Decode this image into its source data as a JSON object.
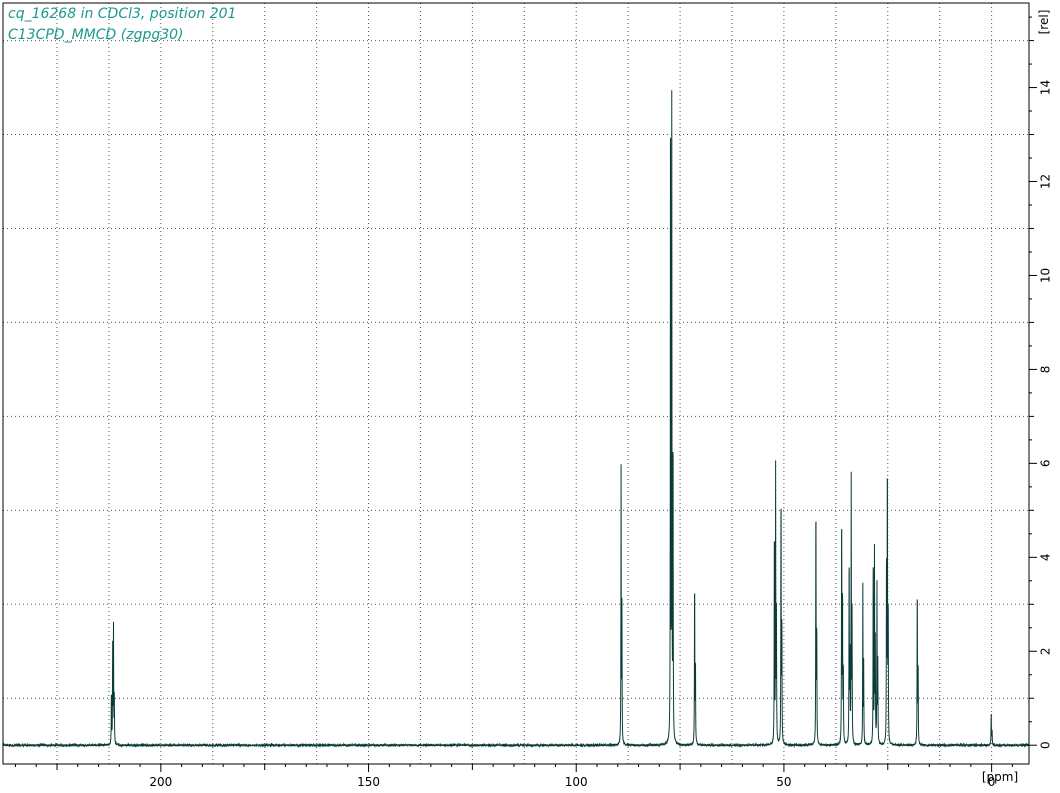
{
  "header": {
    "line1": "cq_16268 in CDCl3, position 201",
    "line2": "C13CPD_MMCD (zgpg30)"
  },
  "chart_data": {
    "type": "line",
    "title": "cq_16268 in CDCl3, position 201",
    "subtitle": "C13CPD_MMCD (zgpg30)",
    "xlabel": "[ppm]",
    "ylabel": "[rel]",
    "xlim": [
      238,
      -9
    ],
    "ylim": [
      -0.4,
      15.8
    ],
    "x_reversed": true,
    "x_ticks": [
      200,
      150,
      100,
      50,
      0
    ],
    "y_ticks": [
      0,
      2,
      4,
      6,
      8,
      10,
      12,
      14
    ],
    "grid": "dotted",
    "colors": {
      "spectrum": "#0b3b38",
      "axis": "#000000",
      "title": "#1a9a8a",
      "grid": "#555555"
    },
    "series": [
      {
        "peaks": [
          {
            "ppm": 211.9,
            "height": 1.2
          },
          {
            "ppm": 211.6,
            "height": 2.05
          },
          {
            "ppm": 211.4,
            "height": 2.45
          },
          {
            "ppm": 211.2,
            "height": 1.0
          },
          {
            "ppm": 89.2,
            "height": 5.85
          },
          {
            "ppm": 89.0,
            "height": 2.85
          },
          {
            "ppm": 77.3,
            "height": 15.05
          },
          {
            "ppm": 77.0,
            "height": 13.45
          },
          {
            "ppm": 76.7,
            "height": 6.95
          },
          {
            "ppm": 71.5,
            "height": 3.75
          },
          {
            "ppm": 71.3,
            "height": 1.85
          },
          {
            "ppm": 52.3,
            "height": 5.0
          },
          {
            "ppm": 52.0,
            "height": 5.8
          },
          {
            "ppm": 51.8,
            "height": 2.7
          },
          {
            "ppm": 50.7,
            "height": 5.8
          },
          {
            "ppm": 50.5,
            "height": 2.8
          },
          {
            "ppm": 42.3,
            "height": 5.5
          },
          {
            "ppm": 42.1,
            "height": 2.6
          },
          {
            "ppm": 36.1,
            "height": 5.25
          },
          {
            "ppm": 35.9,
            "height": 3.4
          },
          {
            "ppm": 35.7,
            "height": 1.7
          },
          {
            "ppm": 34.3,
            "height": 4.3
          },
          {
            "ppm": 34.1,
            "height": 2.1
          },
          {
            "ppm": 33.8,
            "height": 5.6
          },
          {
            "ppm": 33.6,
            "height": 2.7
          },
          {
            "ppm": 31.0,
            "height": 3.35
          },
          {
            "ppm": 30.8,
            "height": 1.7
          },
          {
            "ppm": 28.5,
            "height": 4.35
          },
          {
            "ppm": 28.2,
            "height": 4.05
          },
          {
            "ppm": 28.0,
            "height": 2.1
          },
          {
            "ppm": 27.6,
            "height": 3.35
          },
          {
            "ppm": 27.4,
            "height": 1.7
          },
          {
            "ppm": 25.3,
            "height": 4.25
          },
          {
            "ppm": 25.1,
            "height": 6.35
          },
          {
            "ppm": 24.9,
            "height": 3.1
          },
          {
            "ppm": 17.9,
            "height": 3.6
          },
          {
            "ppm": 17.7,
            "height": 1.8
          },
          {
            "ppm": 0.1,
            "height": 0.75
          },
          {
            "ppm": -0.1,
            "height": 0.35
          }
        ]
      }
    ]
  }
}
